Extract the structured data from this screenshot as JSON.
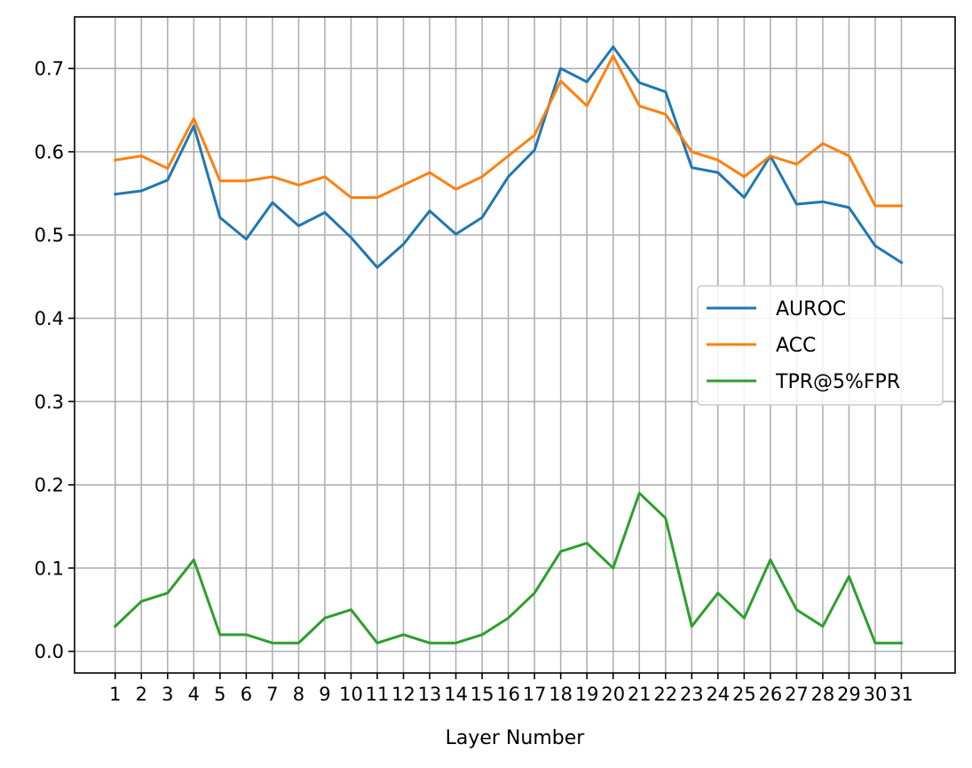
{
  "chart_data": {
    "type": "line",
    "title": "",
    "xlabel": "Layer Number",
    "ylabel": "",
    "x": [
      1,
      2,
      3,
      4,
      5,
      6,
      7,
      8,
      9,
      10,
      11,
      12,
      13,
      14,
      15,
      16,
      17,
      18,
      19,
      20,
      21,
      22,
      23,
      24,
      25,
      26,
      27,
      28,
      29,
      30,
      31
    ],
    "x_tick_labels": [
      "1",
      "2",
      "3",
      "4",
      "5",
      "6",
      "7",
      "8",
      "9",
      "10",
      "11",
      "12",
      "13",
      "14",
      "15",
      "16",
      "17",
      "18",
      "19",
      "20",
      "21",
      "22",
      "23",
      "24",
      "25",
      "26",
      "27",
      "28",
      "29",
      "30",
      "31"
    ],
    "y_ticks": [
      0.0,
      0.1,
      0.2,
      0.3,
      0.4,
      0.5,
      0.6,
      0.7
    ],
    "y_tick_labels": [
      "0.0",
      "0.1",
      "0.2",
      "0.3",
      "0.4",
      "0.5",
      "0.6",
      "0.7"
    ],
    "xlim": [
      -0.55,
      33.05
    ],
    "ylim": [
      -0.026,
      0.762
    ],
    "grid": true,
    "legend_position": "center-right",
    "series": [
      {
        "name": "AUROC",
        "color": "#1f77b4",
        "values": [
          0.549,
          0.553,
          0.566,
          0.631,
          0.521,
          0.495,
          0.539,
          0.511,
          0.527,
          0.497,
          0.461,
          0.489,
          0.529,
          0.501,
          0.521,
          0.57,
          0.602,
          0.7,
          0.684,
          0.726,
          0.683,
          0.672,
          0.581,
          0.575,
          0.545,
          0.595,
          0.537,
          0.54,
          0.533,
          0.487,
          0.467
        ]
      },
      {
        "name": "ACC",
        "color": "#ff7f0e",
        "values": [
          0.59,
          0.595,
          0.58,
          0.64,
          0.565,
          0.565,
          0.57,
          0.56,
          0.57,
          0.545,
          0.545,
          0.56,
          0.575,
          0.555,
          0.57,
          0.595,
          0.62,
          0.685,
          0.655,
          0.715,
          0.655,
          0.645,
          0.6,
          0.59,
          0.57,
          0.595,
          0.585,
          0.61,
          0.595,
          0.535,
          0.535
        ]
      },
      {
        "name": "TPR@5%FPR",
        "color": "#2ca02c",
        "values": [
          0.03,
          0.06,
          0.07,
          0.11,
          0.02,
          0.02,
          0.01,
          0.01,
          0.04,
          0.05,
          0.01,
          0.02,
          0.01,
          0.01,
          0.02,
          0.04,
          0.07,
          0.12,
          0.13,
          0.1,
          0.19,
          0.16,
          0.03,
          0.07,
          0.04,
          0.11,
          0.05,
          0.03,
          0.09,
          0.01,
          0.01
        ]
      }
    ]
  }
}
